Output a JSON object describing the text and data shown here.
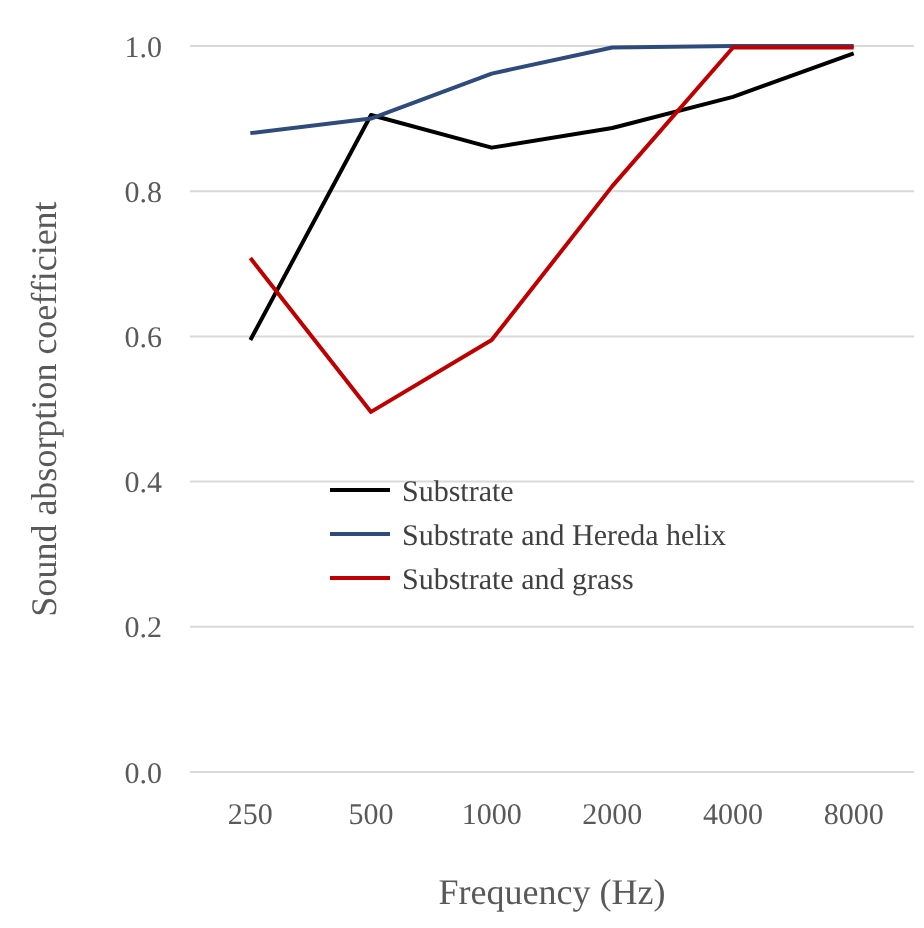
{
  "chart_data": {
    "type": "line",
    "xlabel": "Frequency (Hz)",
    "ylabel": "Sound absorption coefficient",
    "categories": [
      "250",
      "500",
      "1000",
      "2000",
      "4000",
      "8000"
    ],
    "series": [
      {
        "name": "Substrate",
        "color": "#000000",
        "values": [
          0.595,
          0.905,
          0.86,
          0.887,
          0.93,
          0.99
        ]
      },
      {
        "name": "Substrate and Hereda helix",
        "color": "#2f4b7c",
        "values": [
          0.88,
          0.9,
          0.962,
          0.998,
          1.0,
          1.0
        ]
      },
      {
        "name": "Substrate and grass",
        "color": "#c00000",
        "values": [
          0.708,
          0.496,
          0.595,
          0.807,
          0.998,
          0.998
        ]
      }
    ],
    "ylim": [
      0,
      1
    ],
    "yticks": [
      {
        "value": 0,
        "label": "0.0"
      },
      {
        "value": 0.2,
        "label": "0.2"
      },
      {
        "value": 0.4,
        "label": "0.4"
      },
      {
        "value": 0.6,
        "label": "0.6"
      },
      {
        "value": 0.8,
        "label": "0.8"
      },
      {
        "value": 1,
        "label": "1.0"
      }
    ],
    "grid": "y",
    "legend": "center left",
    "marker": "none",
    "line_style": "solid"
  }
}
